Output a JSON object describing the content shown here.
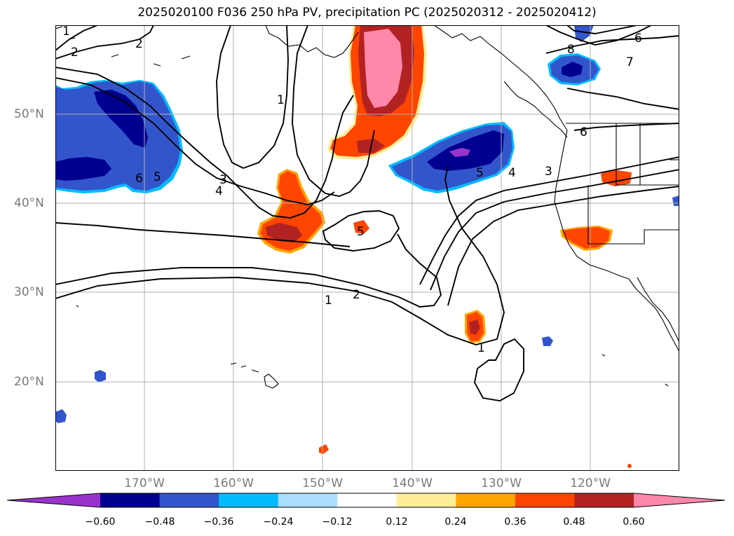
{
  "title": "2025020100 F036 250 hPa PV, precipitation PC (2025020312 - 2025020412)",
  "map": {
    "projection": "lat-lon",
    "lon_range": [
      -180,
      -110
    ],
    "lat_range": [
      10,
      60
    ],
    "gridlines": true,
    "lon_labels": [
      "170°W",
      "160°W",
      "150°W",
      "140°W",
      "130°W",
      "120°W"
    ],
    "lat_labels": [
      "50°N",
      "40°N",
      "30°N",
      "20°N"
    ]
  },
  "colorbar": {
    "ticks": [
      "−0.60",
      "−0.48",
      "−0.36",
      "−0.24",
      "−0.12",
      "0.12",
      "0.24",
      "0.36",
      "0.48",
      "0.60"
    ],
    "colors": [
      "#9933cc",
      "#000090",
      "#3355cc",
      "#00bbff",
      "#aaddff",
      "#ffffff",
      "#ffee99",
      "#ffa500",
      "#ff4500",
      "#b22222",
      "#ff88aa"
    ],
    "extend": "both"
  },
  "contour_labels": [
    "1",
    "2",
    "2",
    "1",
    "3",
    "4",
    "6",
    "5",
    "5",
    "1",
    "2",
    "1",
    "5",
    "4",
    "3",
    "6",
    "6",
    "7",
    "8"
  ]
}
